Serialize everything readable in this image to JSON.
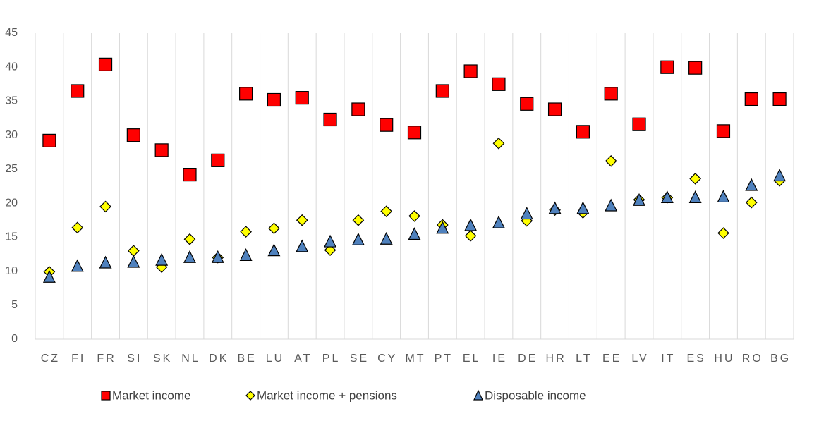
{
  "chart_data": {
    "type": "scatter",
    "categories": [
      "CZ",
      "FI",
      "FR",
      "SI",
      "SK",
      "NL",
      "DK",
      "BE",
      "LU",
      "AT",
      "PL",
      "SE",
      "CY",
      "MT",
      "PT",
      "EL",
      "IE",
      "DE",
      "HR",
      "LT",
      "EE",
      "LV",
      "IT",
      "ES",
      "HU",
      "RO",
      "BG"
    ],
    "series": [
      {
        "name": "Market income",
        "color": "#ff0000",
        "marker": "square",
        "values": [
          29.2,
          36.5,
          40.4,
          30.0,
          27.8,
          24.2,
          26.3,
          36.1,
          35.2,
          35.5,
          32.3,
          33.8,
          31.5,
          30.4,
          36.5,
          39.4,
          37.5,
          34.6,
          33.8,
          30.5,
          36.1,
          31.6,
          40.0,
          39.9,
          30.6,
          35.3,
          35.3
        ]
      },
      {
        "name": "Market income + pensions",
        "color": "#ffff00",
        "marker": "diamond",
        "values": [
          9.9,
          16.4,
          19.5,
          13.0,
          10.6,
          14.7,
          12.0,
          15.8,
          16.3,
          17.5,
          13.1,
          17.5,
          18.8,
          18.1,
          16.8,
          15.2,
          28.8,
          17.4,
          19.0,
          18.6,
          26.2,
          20.5,
          20.8,
          23.6,
          15.6,
          20.1,
          23.3
        ]
      },
      {
        "name": "Disposable income",
        "color": "#4f81bd",
        "marker": "triangle",
        "values": [
          9.1,
          10.7,
          11.2,
          11.3,
          11.6,
          12.0,
          12.0,
          12.3,
          13.0,
          13.6,
          14.3,
          14.6,
          14.7,
          15.4,
          16.3,
          16.7,
          17.1,
          18.4,
          19.2,
          19.2,
          19.6,
          20.4,
          20.8,
          20.8,
          20.9,
          22.6,
          24.0
        ]
      }
    ],
    "ylim": [
      0,
      45
    ],
    "yticks": [
      0,
      5,
      10,
      15,
      20,
      25,
      30,
      35,
      40,
      45
    ],
    "legend": "bottom"
  }
}
